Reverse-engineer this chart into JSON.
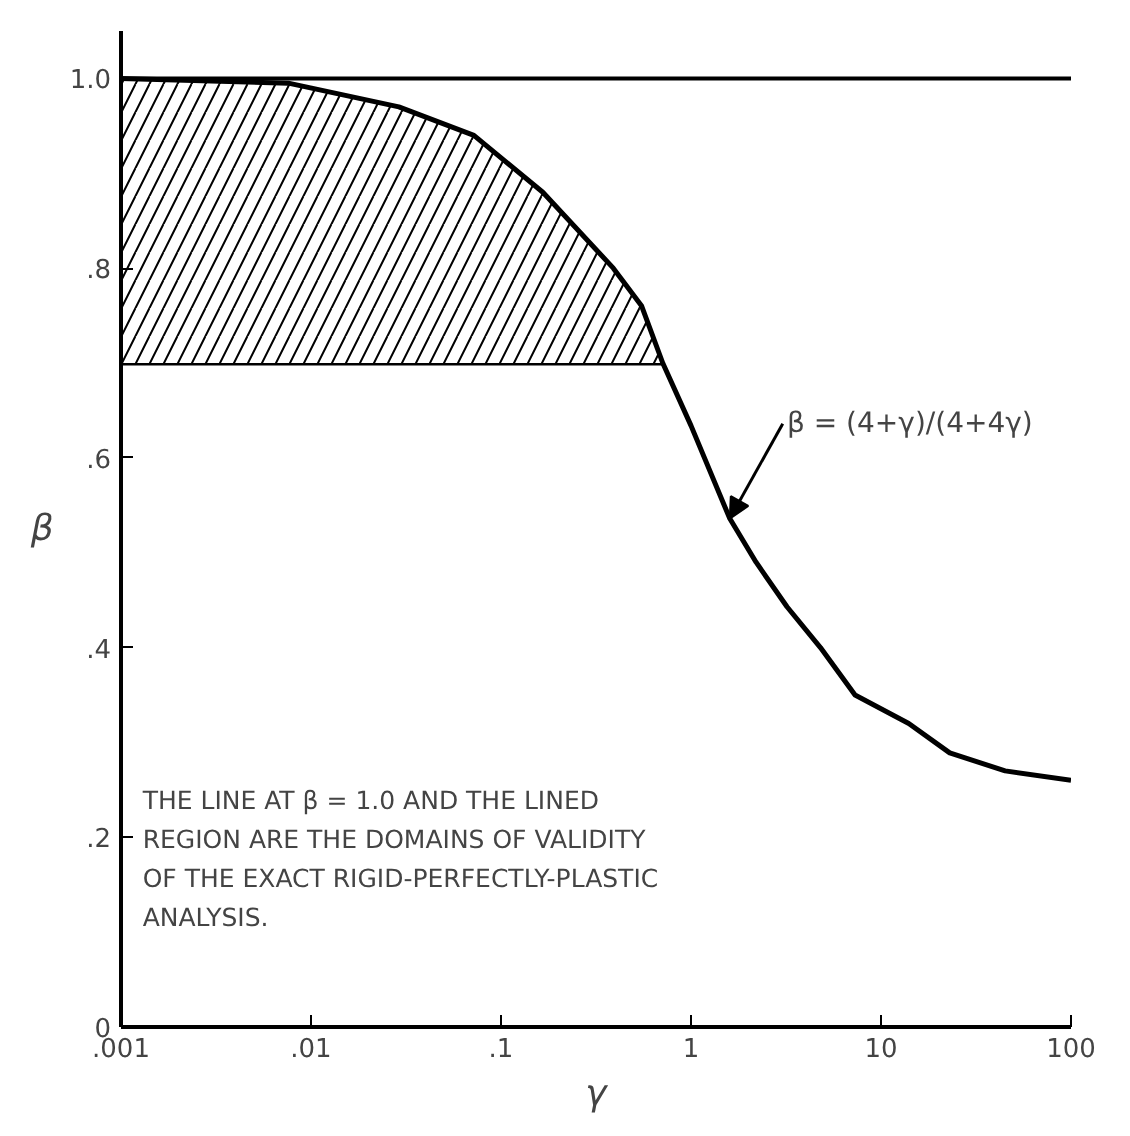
{
  "chart_data": {
    "type": "line",
    "xlabel": "γ",
    "ylabel": "β",
    "log": "x",
    "xlim": [
      0.001,
      100
    ],
    "ylim": [
      0,
      1.05
    ],
    "xticks": [
      {
        "value": 0.001,
        "label": ".001"
      },
      {
        "value": 0.01,
        "label": ".01"
      },
      {
        "value": 0.1,
        "label": ".1"
      },
      1,
      10,
      100
    ],
    "yticks": [
      0,
      {
        "value": 0.2,
        "label": ".2"
      },
      {
        "value": 0.4,
        "label": ".4"
      },
      {
        "value": 0.6,
        "label": ".6"
      },
      {
        "value": 0.8,
        "label": ".8"
      },
      {
        "value": 1.0,
        "label": "1.0"
      }
    ],
    "grid": false,
    "marker": "none",
    "line_style": "solid",
    "series": [
      {
        "color": "#000000",
        "x": [
          0.001,
          0.71
        ],
        "values": [
          0.7,
          0.7
        ]
      },
      {
        "color": "#000000",
        "x": [
          0.001,
          0.0076,
          0.029,
          0.072,
          0.166,
          0.39,
          0.55,
          0.71,
          1.0,
          1.6,
          2.2,
          3.2,
          4.8,
          7.3,
          14,
          23,
          45,
          100
        ],
        "values": [
          1.0,
          0.995,
          0.97,
          0.94,
          0.88,
          0.8,
          0.76,
          0.7,
          0.634,
          0.536,
          0.49,
          0.443,
          0.4,
          0.35,
          0.32,
          0.289,
          0.27,
          0.26
        ],
        "lower": [
          0.7,
          0.7,
          0.7,
          0.7,
          0.7,
          0.7,
          0.7,
          0.7,
          null,
          null,
          null,
          null,
          null,
          null,
          null,
          null,
          null,
          null
        ],
        "upper": [
          1.0,
          0.995,
          0.97,
          0.94,
          0.88,
          0.8,
          0.76,
          0.7,
          null,
          null,
          null,
          null,
          null,
          null,
          null,
          null,
          null,
          null
        ]
      }
    ],
    "ref_lines": [
      {
        "axis": "y",
        "value": 1.0,
        "color": "#000000"
      }
    ],
    "annotations": [
      {
        "text": "β = (4+γ)/(4+4γ)",
        "x": 1.6,
        "y": 0.536
      },
      "THE LINE AT β = 1.0 AND THE LINED\nREGION ARE THE DOMAINS OF VALIDITY\nOF THE EXACT RIGID-PERFECTLY-PLASTIC\nANALYSIS."
    ]
  }
}
